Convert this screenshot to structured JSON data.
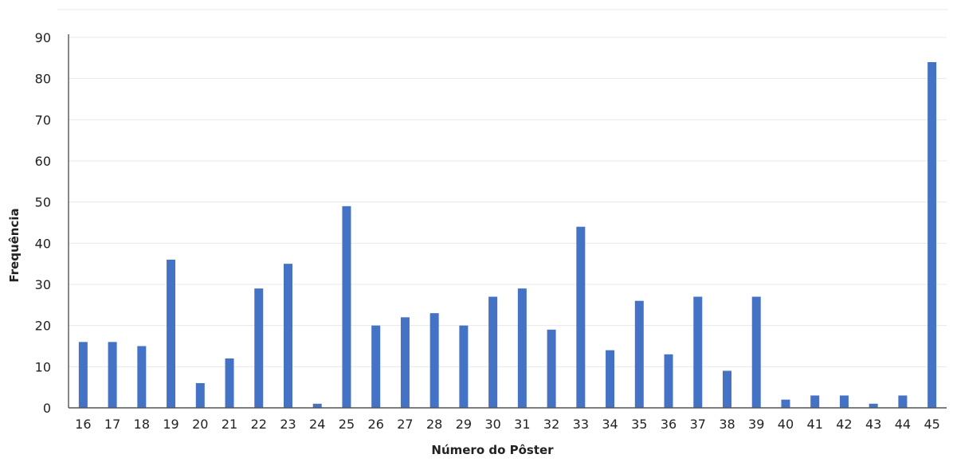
{
  "chart_data": {
    "type": "bar",
    "title": "",
    "xlabel": "Número do Pôster",
    "ylabel": "Frequência",
    "ylim": [
      0,
      90
    ],
    "yticks": [
      0,
      10,
      20,
      30,
      40,
      50,
      60,
      70,
      80,
      90
    ],
    "grid": true,
    "legend": "none",
    "bar_color": "#4472c4",
    "categories": [
      "16",
      "17",
      "18",
      "19",
      "20",
      "21",
      "22",
      "23",
      "24",
      "25",
      "26",
      "27",
      "28",
      "29",
      "30",
      "31",
      "32",
      "33",
      "34",
      "35",
      "36",
      "37",
      "38",
      "39",
      "40",
      "41",
      "42",
      "43",
      "44",
      "45"
    ],
    "values": [
      16,
      16,
      15,
      36,
      6,
      12,
      29,
      35,
      1,
      49,
      20,
      22,
      23,
      20,
      27,
      29,
      19,
      44,
      14,
      26,
      13,
      27,
      9,
      27,
      2,
      3,
      3,
      1,
      3,
      84
    ]
  }
}
